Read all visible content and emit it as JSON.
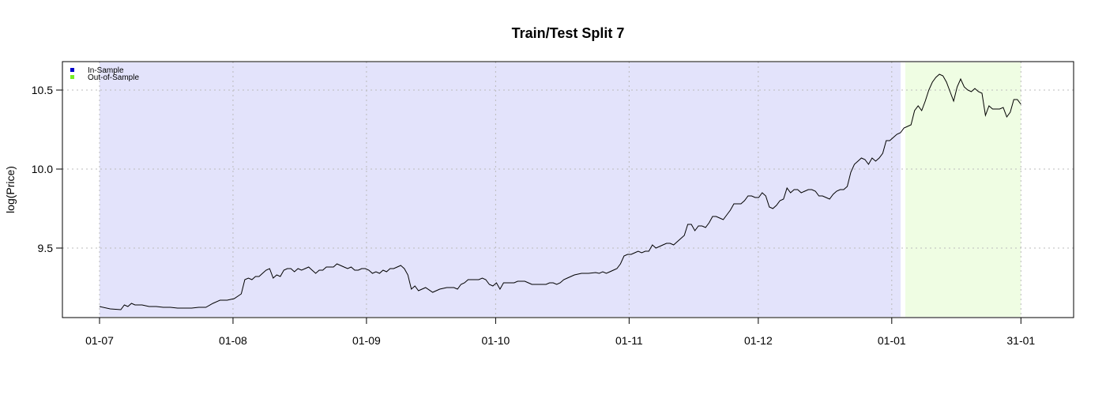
{
  "chart_data": {
    "type": "line",
    "title": "Train/Test Split 7",
    "xlabel": "",
    "ylabel": "log(Price)",
    "x_tick_labels": [
      "01-07",
      "01-08",
      "01-09",
      "01-10",
      "01-11",
      "01-12",
      "01-01",
      "31-01"
    ],
    "y_ticks": [
      9.5,
      10.0,
      10.5
    ],
    "y_tick_labels": [
      "9.5",
      "10.0",
      "10.5"
    ],
    "ylim": [
      9.06,
      10.68
    ],
    "xlim_days": [
      -8.5,
      222
    ],
    "grid": true,
    "legend": {
      "placement": "top-left",
      "entries": [
        {
          "label": "In-Sample",
          "color": "#0000cc"
        },
        {
          "label": "Out-of-Sample",
          "color": "#77ee22"
        }
      ]
    },
    "regions": [
      {
        "name": "In-Sample",
        "from_day": 0,
        "to_day": 178,
        "color": "#e3e3fb"
      },
      {
        "name": "Out-of-Sample",
        "from_day": 179,
        "to_day": 214,
        "color": "#effde3"
      }
    ],
    "series": [
      {
        "name": "log(Price)",
        "color": "#000000",
        "points": [
          [
            0,
            9.13
          ],
          [
            3,
            9.115
          ],
          [
            6,
            9.11
          ],
          [
            7,
            9.14
          ],
          [
            8,
            9.13
          ],
          [
            9,
            9.15
          ],
          [
            10,
            9.14
          ],
          [
            12,
            9.14
          ],
          [
            14,
            9.13
          ],
          [
            16,
            9.13
          ],
          [
            18,
            9.125
          ],
          [
            20,
            9.125
          ],
          [
            22,
            9.12
          ],
          [
            24,
            9.12
          ],
          [
            26,
            9.12
          ],
          [
            28,
            9.125
          ],
          [
            30,
            9.125
          ],
          [
            32,
            9.15
          ],
          [
            34,
            9.17
          ],
          [
            36,
            9.17
          ],
          [
            38,
            9.18
          ],
          [
            40,
            9.21
          ],
          [
            41,
            9.3
          ],
          [
            42,
            9.31
          ],
          [
            43,
            9.3
          ],
          [
            44,
            9.32
          ],
          [
            45,
            9.32
          ],
          [
            46,
            9.34
          ],
          [
            47,
            9.36
          ],
          [
            48,
            9.37
          ],
          [
            49,
            9.31
          ],
          [
            50,
            9.33
          ],
          [
            51,
            9.32
          ],
          [
            52,
            9.36
          ],
          [
            53,
            9.37
          ],
          [
            54,
            9.37
          ],
          [
            55,
            9.35
          ],
          [
            56,
            9.37
          ],
          [
            57,
            9.36
          ],
          [
            58,
            9.37
          ],
          [
            59,
            9.38
          ],
          [
            60,
            9.36
          ],
          [
            61,
            9.34
          ],
          [
            62,
            9.36
          ],
          [
            63,
            9.36
          ],
          [
            64,
            9.38
          ],
          [
            65,
            9.38
          ],
          [
            66,
            9.38
          ],
          [
            67,
            9.4
          ],
          [
            68,
            9.39
          ],
          [
            69,
            9.38
          ],
          [
            70,
            9.37
          ],
          [
            71,
            9.38
          ],
          [
            72,
            9.36
          ],
          [
            73,
            9.36
          ],
          [
            74,
            9.37
          ],
          [
            75,
            9.37
          ],
          [
            76,
            9.36
          ],
          [
            77,
            9.34
          ],
          [
            78,
            9.35
          ],
          [
            79,
            9.34
          ],
          [
            80,
            9.36
          ],
          [
            81,
            9.35
          ],
          [
            82,
            9.37
          ],
          [
            83,
            9.37
          ],
          [
            84,
            9.38
          ],
          [
            85,
            9.39
          ],
          [
            86,
            9.37
          ],
          [
            87,
            9.33
          ],
          [
            88,
            9.24
          ],
          [
            89,
            9.26
          ],
          [
            90,
            9.23
          ],
          [
            92,
            9.25
          ],
          [
            94,
            9.22
          ],
          [
            96,
            9.24
          ],
          [
            98,
            9.25
          ],
          [
            100,
            9.25
          ],
          [
            101,
            9.24
          ],
          [
            102,
            9.27
          ],
          [
            103,
            9.28
          ],
          [
            104,
            9.3
          ],
          [
            105,
            9.3
          ],
          [
            106,
            9.3
          ],
          [
            107,
            9.3
          ],
          [
            108,
            9.31
          ],
          [
            109,
            9.3
          ],
          [
            110,
            9.27
          ],
          [
            111,
            9.26
          ],
          [
            112,
            9.28
          ],
          [
            113,
            9.24
          ],
          [
            114,
            9.28
          ],
          [
            115,
            9.28
          ],
          [
            116,
            9.28
          ],
          [
            117,
            9.28
          ],
          [
            118,
            9.29
          ],
          [
            120,
            9.29
          ],
          [
            121,
            9.28
          ],
          [
            122,
            9.27
          ],
          [
            124,
            9.27
          ],
          [
            126,
            9.27
          ],
          [
            127,
            9.28
          ],
          [
            128,
            9.28
          ],
          [
            129,
            9.27
          ],
          [
            130,
            9.28
          ],
          [
            131,
            9.3
          ],
          [
            132,
            9.31
          ],
          [
            133,
            9.32
          ],
          [
            134,
            9.33
          ],
          [
            136,
            9.34
          ],
          [
            138,
            9.34
          ],
          [
            140,
            9.345
          ],
          [
            141,
            9.34
          ],
          [
            142,
            9.35
          ],
          [
            143,
            9.34
          ],
          [
            144,
            9.35
          ],
          [
            145,
            9.36
          ],
          [
            146,
            9.37
          ],
          [
            147,
            9.4
          ],
          [
            148,
            9.45
          ],
          [
            149,
            9.46
          ],
          [
            150,
            9.46
          ],
          [
            151,
            9.47
          ],
          [
            152,
            9.48
          ],
          [
            153,
            9.47
          ],
          [
            154,
            9.48
          ],
          [
            155,
            9.48
          ],
          [
            156,
            9.52
          ],
          [
            157,
            9.5
          ],
          [
            158,
            9.51
          ],
          [
            159,
            9.52
          ],
          [
            160,
            9.53
          ],
          [
            161,
            9.53
          ],
          [
            162,
            9.52
          ],
          [
            163,
            9.54
          ],
          [
            164,
            9.56
          ],
          [
            165,
            9.58
          ],
          [
            166,
            9.65
          ],
          [
            167,
            9.65
          ],
          [
            168,
            9.61
          ],
          [
            169,
            9.64
          ],
          [
            170,
            9.64
          ],
          [
            171,
            9.63
          ],
          [
            172,
            9.66
          ],
          [
            173,
            9.7
          ],
          [
            174,
            9.7
          ],
          [
            175,
            9.69
          ],
          [
            176,
            9.68
          ],
          [
            177,
            9.71
          ],
          [
            178,
            9.74
          ],
          [
            179,
            9.78
          ],
          [
            180,
            9.78
          ],
          [
            181,
            9.78
          ],
          [
            182,
            9.8
          ],
          [
            183,
            9.83
          ],
          [
            184,
            9.83
          ],
          [
            185,
            9.82
          ],
          [
            186,
            9.82
          ],
          [
            187,
            9.85
          ],
          [
            188,
            9.83
          ],
          [
            189,
            9.76
          ],
          [
            190,
            9.75
          ],
          [
            191,
            9.77
          ],
          [
            192,
            9.8
          ],
          [
            193,
            9.81
          ],
          [
            194,
            9.88
          ],
          [
            195,
            9.85
          ],
          [
            196,
            9.87
          ],
          [
            197,
            9.87
          ],
          [
            198,
            9.85
          ],
          [
            199,
            9.86
          ],
          [
            200,
            9.87
          ],
          [
            201,
            9.87
          ],
          [
            202,
            9.86
          ],
          [
            203,
            9.83
          ],
          [
            204,
            9.83
          ],
          [
            205,
            9.82
          ],
          [
            206,
            9.81
          ],
          [
            207,
            9.84
          ],
          [
            208,
            9.86
          ],
          [
            209,
            9.87
          ],
          [
            210,
            9.87
          ],
          [
            211,
            9.89
          ],
          [
            212,
            9.98
          ],
          [
            213,
            10.03
          ],
          [
            214,
            10.05
          ],
          [
            215,
            10.07
          ],
          [
            216,
            10.06
          ],
          [
            217,
            10.03
          ],
          [
            218,
            10.07
          ],
          [
            219,
            10.05
          ],
          [
            220,
            10.07
          ],
          [
            221,
            10.1
          ],
          [
            222,
            10.18
          ],
          [
            223,
            10.18
          ],
          [
            224,
            10.2
          ],
          [
            225,
            10.22
          ],
          [
            226,
            10.23
          ],
          [
            227,
            10.26
          ],
          [
            228,
            10.27
          ],
          [
            229,
            10.28
          ],
          [
            230,
            10.37
          ],
          [
            231,
            10.4
          ],
          [
            232,
            10.37
          ],
          [
            233,
            10.43
          ],
          [
            234,
            10.5
          ],
          [
            235,
            10.55
          ],
          [
            236,
            10.58
          ],
          [
            237,
            10.6
          ],
          [
            238,
            10.59
          ],
          [
            239,
            10.55
          ],
          [
            240,
            10.49
          ],
          [
            241,
            10.43
          ],
          [
            242,
            10.52
          ],
          [
            243,
            10.57
          ],
          [
            244,
            10.52
          ],
          [
            245,
            10.5
          ],
          [
            246,
            10.49
          ],
          [
            247,
            10.51
          ],
          [
            248,
            10.49
          ],
          [
            249,
            10.48
          ],
          [
            250,
            10.34
          ],
          [
            251,
            10.4
          ],
          [
            252,
            10.38
          ],
          [
            253,
            10.38
          ],
          [
            254,
            10.38
          ],
          [
            255,
            10.39
          ],
          [
            256,
            10.33
          ],
          [
            257,
            10.36
          ],
          [
            258,
            10.44
          ],
          [
            259,
            10.44
          ],
          [
            260,
            10.41
          ]
        ]
      }
    ]
  }
}
